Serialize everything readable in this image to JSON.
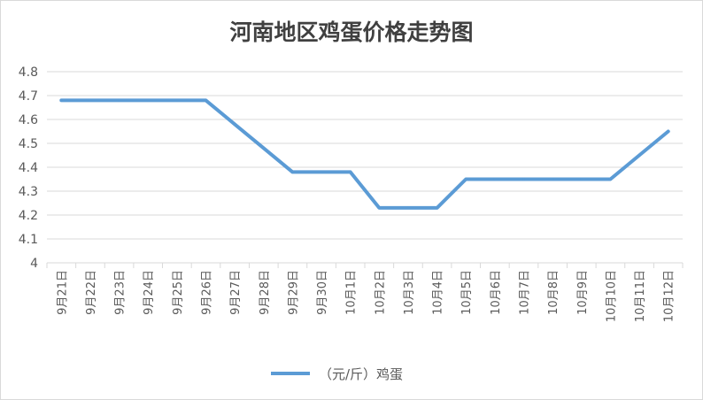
{
  "chart_data": {
    "type": "line",
    "title": "河南地区鸡蛋价格走势图",
    "categories": [
      "9月21日",
      "9月22日",
      "9月23日",
      "9月24日",
      "9月25日",
      "9月26日",
      "9月27日",
      "9月28日",
      "9月29日",
      "9月30日",
      "10月1日",
      "10月2日",
      "10月3日",
      "10月4日",
      "10月5日",
      "10月6日",
      "10月7日",
      "10月8日",
      "10月9日",
      "10月10日",
      "10月11日",
      "10月12日"
    ],
    "series": [
      {
        "name": "（元/斤）鸡蛋",
        "color": "#5b9bd5",
        "values": [
          4.68,
          4.68,
          4.68,
          4.68,
          4.68,
          4.68,
          4.58,
          4.48,
          4.38,
          4.38,
          4.38,
          4.23,
          4.23,
          4.23,
          4.35,
          4.35,
          4.35,
          4.35,
          4.35,
          4.35,
          4.45,
          4.55
        ]
      }
    ],
    "yticks": [
      "4",
      "4.1",
      "4.2",
      "4.3",
      "4.4",
      "4.5",
      "4.6",
      "4.7",
      "4.8"
    ],
    "ylim": [
      4,
      4.8
    ],
    "grid": true,
    "legend": "bottom"
  }
}
